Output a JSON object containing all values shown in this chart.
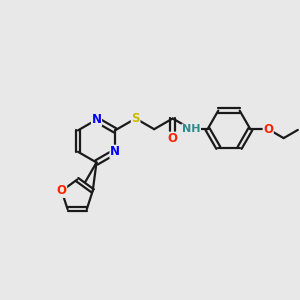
{
  "bg_color": "#e8e8e8",
  "bond_color": "#1a1a1a",
  "bond_width": 1.6,
  "atom_colors": {
    "N": "#0000ff",
    "O": "#ff2200",
    "S": "#ccbb00",
    "NH": "#2e8b8b",
    "C": "#1a1a1a"
  },
  "font_size_atom": 8.5,
  "fig_size": [
    3.0,
    3.0
  ],
  "dpi": 100,
  "xlim": [
    0,
    10
  ],
  "ylim": [
    0,
    10
  ]
}
